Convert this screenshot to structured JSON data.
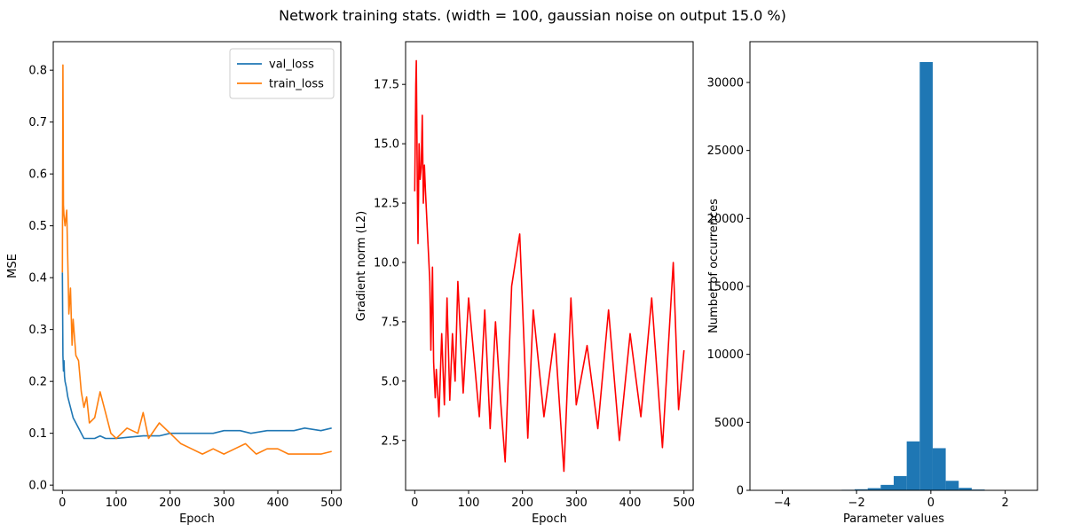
{
  "figure": {
    "title": "Network training stats. (width = 100, gaussian noise on output 15.0 %)"
  },
  "chart_data": [
    {
      "type": "line",
      "xlabel": "Epoch",
      "ylabel": "MSE",
      "xlim": [
        -17,
        517
      ],
      "ylim": [
        -0.01,
        0.855
      ],
      "xticks": [
        0,
        100,
        200,
        300,
        400,
        500
      ],
      "xtick_labels": [
        "0",
        "100",
        "200",
        "300",
        "400",
        "500"
      ],
      "yticks": [
        0.0,
        0.1,
        0.2,
        0.3,
        0.4,
        0.5,
        0.6,
        0.7,
        0.8
      ],
      "ytick_labels": [
        "0.0",
        "0.1",
        "0.2",
        "0.3",
        "0.4",
        "0.5",
        "0.6",
        "0.7",
        "0.8"
      ],
      "grid": false,
      "legend": "top-right",
      "series": [
        {
          "name": "val_loss",
          "color": "#1f77b4",
          "x": [
            0,
            1,
            2,
            3,
            4,
            5,
            7,
            10,
            15,
            20,
            25,
            30,
            35,
            40,
            50,
            60,
            70,
            80,
            100,
            120,
            150,
            180,
            200,
            220,
            250,
            280,
            300,
            330,
            350,
            380,
            400,
            430,
            450,
            480,
            500
          ],
          "y": [
            0.41,
            0.25,
            0.22,
            0.24,
            0.21,
            0.2,
            0.19,
            0.17,
            0.15,
            0.13,
            0.12,
            0.11,
            0.1,
            0.09,
            0.09,
            0.09,
            0.095,
            0.09,
            0.09,
            0.092,
            0.095,
            0.095,
            0.1,
            0.1,
            0.1,
            0.1,
            0.105,
            0.105,
            0.1,
            0.105,
            0.105,
            0.105,
            0.11,
            0.105,
            0.11
          ]
        },
        {
          "name": "train_loss",
          "color": "#ff7f0e",
          "x": [
            0,
            1,
            2,
            3,
            5,
            8,
            10,
            12,
            15,
            18,
            20,
            25,
            30,
            35,
            40,
            45,
            50,
            60,
            70,
            80,
            90,
            100,
            120,
            140,
            150,
            160,
            180,
            200,
            220,
            240,
            260,
            280,
            300,
            320,
            340,
            360,
            380,
            400,
            420,
            440,
            460,
            480,
            500
          ],
          "y": [
            0.41,
            0.81,
            0.54,
            0.52,
            0.5,
            0.53,
            0.43,
            0.33,
            0.38,
            0.27,
            0.32,
            0.25,
            0.24,
            0.18,
            0.15,
            0.17,
            0.12,
            0.13,
            0.18,
            0.14,
            0.1,
            0.09,
            0.11,
            0.1,
            0.14,
            0.09,
            0.12,
            0.1,
            0.08,
            0.07,
            0.06,
            0.07,
            0.06,
            0.07,
            0.08,
            0.06,
            0.07,
            0.07,
            0.06,
            0.06,
            0.06,
            0.06,
            0.065
          ]
        }
      ]
    },
    {
      "type": "line",
      "xlabel": "Epoch",
      "ylabel": "Gradient norm (L2)",
      "xlim": [
        -17,
        517
      ],
      "ylim": [
        0.4,
        19.3
      ],
      "xticks": [
        0,
        100,
        200,
        300,
        400,
        500
      ],
      "xtick_labels": [
        "0",
        "100",
        "200",
        "300",
        "400",
        "500"
      ],
      "yticks": [
        2.5,
        5.0,
        7.5,
        10.0,
        12.5,
        15.0,
        17.5
      ],
      "ytick_labels": [
        "2.5",
        "5.0",
        "7.5",
        "10.0",
        "12.5",
        "15.0",
        "17.5"
      ],
      "grid": false,
      "series": [
        {
          "color": "#ff0000",
          "x": [
            0,
            2,
            3,
            5,
            6,
            8,
            10,
            12,
            14,
            16,
            18,
            20,
            22,
            25,
            28,
            30,
            33,
            35,
            38,
            40,
            45,
            50,
            55,
            60,
            65,
            70,
            75,
            80,
            90,
            100,
            110,
            120,
            130,
            140,
            150,
            160,
            168,
            180,
            195,
            210,
            220,
            240,
            260,
            277,
            290,
            300,
            320,
            340,
            360,
            380,
            400,
            420,
            440,
            460,
            480,
            490,
            500
          ],
          "y": [
            13.0,
            17.5,
            18.5,
            13.0,
            10.8,
            15.0,
            13.5,
            14.0,
            16.2,
            12.5,
            14.1,
            13.0,
            12.0,
            10.6,
            9.2,
            6.3,
            9.8,
            5.8,
            4.3,
            5.5,
            3.5,
            7.0,
            4.0,
            8.5,
            4.2,
            7.0,
            5.0,
            9.2,
            4.5,
            8.5,
            6.0,
            3.5,
            8.0,
            3.0,
            7.5,
            4.0,
            1.6,
            9.0,
            11.2,
            2.6,
            8.0,
            3.5,
            7.0,
            1.2,
            8.5,
            4.0,
            6.5,
            3.0,
            8.0,
            2.5,
            7.0,
            3.5,
            8.5,
            2.2,
            10.0,
            3.8,
            6.3
          ]
        }
      ]
    },
    {
      "type": "bar",
      "xlabel": "Parameter values",
      "ylabel": "Number of occurrences",
      "xlim": [
        -4.87,
        2.87
      ],
      "ylim": [
        0,
        33000
      ],
      "xticks": [
        -4,
        -2,
        0,
        2
      ],
      "xtick_labels": [
        "−4",
        "−2",
        "0",
        "2"
      ],
      "yticks": [
        0,
        5000,
        10000,
        15000,
        20000,
        25000,
        30000
      ],
      "ytick_labels": [
        "0",
        "5000",
        "10000",
        "15000",
        "20000",
        "25000",
        "30000"
      ],
      "grid": false,
      "bar_color": "#1f77b4",
      "bin_edges": [
        -4.5,
        -4.15,
        -3.8,
        -3.45,
        -3.1,
        -2.75,
        -2.4,
        -2.05,
        -1.7,
        -1.35,
        -1.0,
        -0.65,
        -0.3,
        0.05,
        0.4,
        0.75,
        1.1,
        1.45,
        1.8,
        2.15,
        2.5
      ],
      "values": [
        2,
        3,
        5,
        8,
        12,
        25,
        40,
        80,
        160,
        400,
        1050,
        3600,
        31500,
        3100,
        700,
        180,
        60,
        20,
        8,
        3
      ]
    }
  ]
}
